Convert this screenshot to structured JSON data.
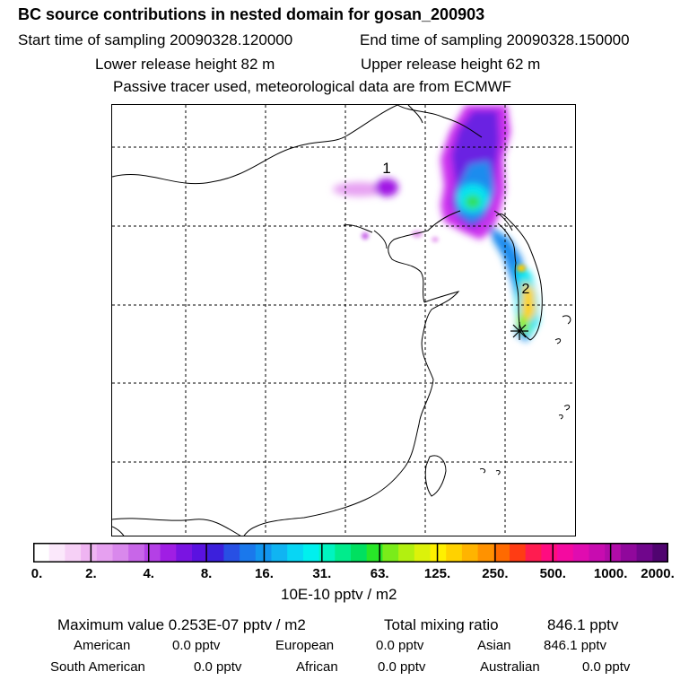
{
  "header": {
    "title": "BC  source contributions in nested domain for gosan_200903",
    "start_label": "Start time of sampling 20090328.120000",
    "end_label": "End time of sampling 20090328.150000",
    "lower_label": "Lower release height   82 m",
    "upper_label": "Upper release height   62 m",
    "note": "Passive tracer used, meteorological data are from ECMWF"
  },
  "map": {
    "markers": [
      {
        "label": "2"
      },
      {
        "label": "1"
      }
    ],
    "receptor": "gosan"
  },
  "colorbar": {
    "colors": [
      "#ffffff",
      "#fbe8fb",
      "#f6d0f6",
      "#efb4f2",
      "#e6a0f0",
      "#d988ec",
      "#c866e8",
      "#b440e6",
      "#a01ee4",
      "#7a14e2",
      "#5a12e0",
      "#3c20dc",
      "#2850e4",
      "#1a78ec",
      "#1296f0",
      "#10b4f2",
      "#08d6f4",
      "#00f0ee",
      "#00f4c0",
      "#00ec8c",
      "#00e060",
      "#28e628",
      "#7aec1a",
      "#b2f010",
      "#dcf20a",
      "#fff000",
      "#ffd200",
      "#ffb400",
      "#ff9200",
      "#ff6a00",
      "#ff3c14",
      "#ff1c50",
      "#ff0c80",
      "#f40aa0",
      "#e00cb0",
      "#c80cb0",
      "#b00ca8",
      "#90089c",
      "#70068c",
      "#500470"
    ],
    "tick_labels": [
      "0.",
      "2.",
      "4.",
      "8.",
      "16.",
      "31.",
      "63.",
      "125.",
      "250.",
      "500.",
      "1000.",
      "2000."
    ],
    "unit_label": "10E-10 pptv / m2"
  },
  "chart_data": {
    "type": "heatmap",
    "title": "BC  source contributions in nested domain for gosan_200903",
    "colorbar_levels": [
      0,
      2,
      4,
      8,
      16,
      31,
      63,
      125,
      250,
      500,
      1000,
      2000
    ],
    "colorbar_unit": "10E-10 pptv / m2",
    "max_value": "0.253E-07 pptv / m2",
    "total_mixing_ratio_pptv": 846.1,
    "contributions_pptv": {
      "American": 0.0,
      "European": 0.0,
      "Asian": 846.1,
      "South American": 0.0,
      "African": 0.0,
      "Australian": 0.0
    }
  },
  "summary": {
    "max_label": "Maximum value  0.253E-07 pptv / m2",
    "total_label": "Total mixing ratio",
    "total_value": "846.1 pptv",
    "regions": [
      {
        "name": "American",
        "value": "0.0 pptv"
      },
      {
        "name": "European",
        "value": "0.0 pptv"
      },
      {
        "name": "Asian",
        "value": "846.1 pptv"
      },
      {
        "name": "South American",
        "value": "0.0 pptv"
      },
      {
        "name": "African",
        "value": "0.0 pptv"
      },
      {
        "name": "Australian",
        "value": "0.0 pptv"
      }
    ]
  }
}
